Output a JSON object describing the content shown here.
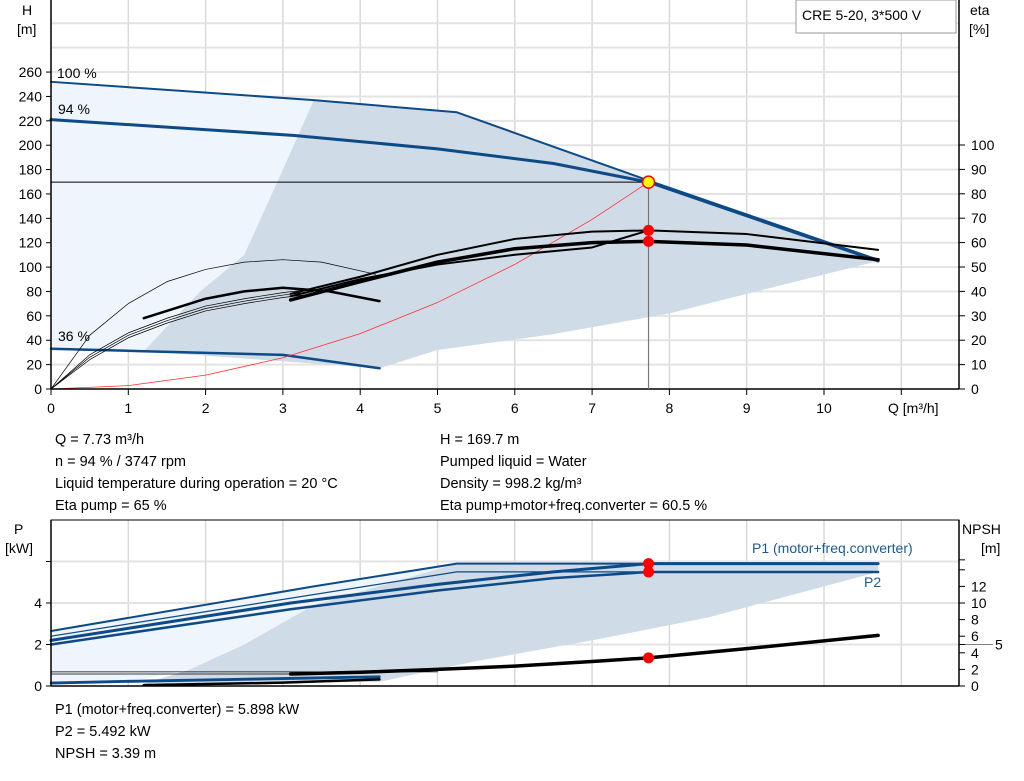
{
  "chart_data": [
    {
      "type": "line",
      "title": "CRE 5-20, 3*500 V",
      "xlabel": "Q [m³/h]",
      "ylabel_left": [
        "H",
        "[m]"
      ],
      "ylabel_right": [
        "eta",
        "[%]"
      ],
      "xlim": [
        0,
        11.7
      ],
      "ylim_left": [
        0,
        300
      ],
      "ylim_right": [
        0,
        100
      ],
      "x_ticks": [
        "0",
        "1",
        "2",
        "3",
        "4",
        "5",
        "6",
        "7",
        "8",
        "9",
        "10"
      ],
      "y_ticks_left": [
        "0",
        "20",
        "40",
        "60",
        "80",
        "100",
        "120",
        "140",
        "160",
        "180",
        "200",
        "220",
        "240",
        "260"
      ],
      "y_ticks_right": [
        "0",
        "10",
        "20",
        "30",
        "40",
        "50",
        "60",
        "70",
        "80",
        "90",
        "100"
      ],
      "grid": true,
      "curve_labels": [
        "100 %",
        "94 %",
        "36 %"
      ],
      "regions": [
        {
          "name": "outer-range",
          "color": "#eef5fc",
          "axis": "left",
          "points": [
            [
              0,
              252
            ],
            [
              3.4,
              237
            ],
            [
              3.0,
              180
            ],
            [
              2.5,
              110
            ],
            [
              1.93,
              80
            ],
            [
              1.25,
              33
            ],
            [
              1.2,
              31
            ],
            [
              0,
              33
            ]
          ]
        },
        {
          "name": "preferred-range",
          "color": "#cfdbe6",
          "axis": "left",
          "points": [
            [
              3.4,
              237
            ],
            [
              5.25,
              227
            ],
            [
              10.7,
              105
            ],
            [
              9.5,
              86
            ],
            [
              8,
              62
            ],
            [
              6.5,
              45
            ],
            [
              5,
              32
            ],
            [
              4.25,
              17
            ],
            [
              1.2,
              31
            ],
            [
              1.93,
              80
            ],
            [
              2.5,
              110
            ],
            [
              3.0,
              180
            ]
          ]
        }
      ],
      "series": [
        {
          "id": "h-100",
          "axis": "left",
          "color": "#0d4a86",
          "width": 2,
          "points": [
            [
              0,
              252
            ],
            [
              3.4,
              237
            ],
            [
              5.25,
              227
            ],
            [
              7.73,
              171
            ],
            [
              10.7,
              106
            ]
          ]
        },
        {
          "id": "h-94",
          "axis": "left",
          "color": "#0d4a86",
          "width": 3,
          "points": [
            [
              0,
              221
            ],
            [
              3.15,
              208
            ],
            [
              5,
              197
            ],
            [
              6.5,
              185
            ],
            [
              7.73,
              169.7
            ],
            [
              10.7,
              105
            ]
          ]
        },
        {
          "id": "h-36",
          "axis": "left",
          "color": "#0d4a86",
          "width": 2.5,
          "points": [
            [
              0,
              33
            ],
            [
              1.2,
              31
            ],
            [
              3,
              28
            ],
            [
              4.25,
              17
            ]
          ]
        },
        {
          "id": "system-curve",
          "axis": "left",
          "color": "#ff3030",
          "width": 0.8,
          "points": [
            [
              0,
              0
            ],
            [
              1,
              2.8
            ],
            [
              2,
              11.4
            ],
            [
              3,
              25.6
            ],
            [
              4,
              45.4
            ],
            [
              5,
              71
            ],
            [
              6,
              102.2
            ],
            [
              7,
              139.1
            ],
            [
              7.73,
              169.7
            ]
          ]
        },
        {
          "id": "eta-pump-100",
          "axis": "right",
          "color": "#000",
          "width": 0.7,
          "points": [
            [
              0,
              0
            ],
            [
              0.5,
              22
            ],
            [
              1,
              35
            ],
            [
              1.5,
              44
            ],
            [
              2,
              49
            ],
            [
              2.5,
              52
            ],
            [
              3,
              53
            ],
            [
              3.5,
              52
            ],
            [
              4.2,
              47
            ]
          ]
        },
        {
          "id": "eta-pump-36",
          "axis": "right",
          "color": "#000",
          "width": 2.5,
          "points": [
            [
              1.2,
              29
            ],
            [
              2,
              37
            ],
            [
              2.5,
              40
            ],
            [
              3,
              41.5
            ],
            [
              3.6,
              40
            ],
            [
              4.25,
              36
            ]
          ]
        },
        {
          "id": "eta-thin-1",
          "axis": "right",
          "color": "#000",
          "width": 0.7,
          "points": [
            [
              0,
              0
            ],
            [
              0.5,
              14
            ],
            [
              1,
              23
            ],
            [
              1.5,
              29
            ],
            [
              2,
              34
            ],
            [
              2.5,
              37
            ],
            [
              3,
              39.5
            ],
            [
              3.4,
              41
            ]
          ]
        },
        {
          "id": "eta-thin-2",
          "axis": "right",
          "color": "#000",
          "width": 0.7,
          "points": [
            [
              0,
              0
            ],
            [
              0.5,
              13
            ],
            [
              1,
              22
            ],
            [
              1.5,
              28
            ],
            [
              2,
              33
            ],
            [
              2.5,
              36
            ],
            [
              3,
              38.5
            ],
            [
              3.4,
              40
            ]
          ]
        },
        {
          "id": "eta-thin-3",
          "axis": "right",
          "color": "#000",
          "width": 0.7,
          "points": [
            [
              0,
              0
            ],
            [
              0.5,
              12
            ],
            [
              1,
              21
            ],
            [
              1.5,
              27
            ],
            [
              2,
              32
            ],
            [
              2.5,
              35
            ],
            [
              3,
              37.5
            ],
            [
              3.4,
              39
            ]
          ]
        },
        {
          "id": "eta-pump",
          "axis": "right",
          "color": "#000",
          "width": 2,
          "points": [
            [
              3.1,
              38
            ],
            [
              4,
              45
            ],
            [
              5,
              51
            ],
            [
              6,
              55
            ],
            [
              7,
              58
            ],
            [
              7.73,
              65
            ],
            [
              7.73,
              65
            ]
          ]
        },
        {
          "id": "eta-pump-94",
          "axis": "right",
          "color": "#000",
          "width": 2,
          "points": [
            [
              3.1,
              39
            ],
            [
              4,
              46
            ],
            [
              5,
              55
            ],
            [
              6,
              61.5
            ],
            [
              7,
              64.5
            ],
            [
              7.73,
              65
            ],
            [
              9,
              63.5
            ],
            [
              10.7,
              57
            ]
          ]
        },
        {
          "id": "eta-total-94",
          "axis": "right",
          "color": "#000",
          "width": 3.5,
          "points": [
            [
              3.1,
              36.5
            ],
            [
              4,
              44
            ],
            [
              5,
              52
            ],
            [
              6,
              57.5
            ],
            [
              7,
              60
            ],
            [
              7.73,
              60.5
            ],
            [
              9,
              59
            ],
            [
              10.7,
              53
            ]
          ]
        }
      ],
      "operating_point": {
        "Q": 7.73,
        "H": 169.7,
        "eta_pump": 65,
        "eta_total": 60.5
      }
    },
    {
      "type": "line",
      "ylabel_left": [
        "P",
        "[kW]"
      ],
      "ylabel_right": [
        "NPSH",
        "[m]"
      ],
      "xlim": [
        0,
        11.7
      ],
      "ylim_left": [
        0,
        8
      ],
      "ylim_right": [
        0,
        20
      ],
      "y_ticks_left": [
        "0",
        "2",
        "4"
      ],
      "y_ticks_right": [
        "0",
        "2",
        "4",
        "5",
        "6",
        "8",
        "10",
        "12"
      ],
      "grid": true,
      "curve_labels": [
        "P1 (motor+freq.converter)",
        "P2"
      ],
      "regions": [
        {
          "name": "outer-range",
          "color": "#eef5fc",
          "axis": "left",
          "points": [
            [
              0,
              2.65
            ],
            [
              3.4,
              4.8
            ],
            [
              5.25,
              5.9
            ],
            [
              3.4,
              3.9
            ],
            [
              2.5,
              2.0
            ],
            [
              1.8,
              0.8
            ],
            [
              1.2,
              0.35
            ],
            [
              0,
              0.1
            ]
          ]
        },
        {
          "name": "preferred-range",
          "color": "#cfdbe6",
          "axis": "left",
          "points": [
            [
              5.25,
              5.9
            ],
            [
              10.7,
              5.9
            ],
            [
              10.7,
              5.5
            ],
            [
              9.5,
              4.3
            ],
            [
              8.5,
              3.3
            ],
            [
              7,
              2.2
            ],
            [
              5.5,
              1.2
            ],
            [
              4.25,
              0.2
            ],
            [
              1.2,
              0.1
            ],
            [
              1.8,
              0.8
            ],
            [
              2.5,
              2.0
            ],
            [
              3.4,
              3.9
            ]
          ]
        }
      ],
      "series": [
        {
          "id": "p1-100",
          "axis": "left",
          "color": "#0d4a86",
          "width": 2,
          "points": [
            [
              0,
              2.65
            ],
            [
              3.4,
              4.8
            ],
            [
              5.25,
              5.9
            ],
            [
              10.7,
              5.9
            ]
          ]
        },
        {
          "id": "p2-100",
          "axis": "left",
          "color": "#0d4a86",
          "width": 1.2,
          "points": [
            [
              0,
              2.4
            ],
            [
              5.25,
              5.5
            ],
            [
              10.7,
              5.5
            ]
          ]
        },
        {
          "id": "p1-94",
          "axis": "left",
          "color": "#0d4a86",
          "width": 3,
          "points": [
            [
              0,
              2.2
            ],
            [
              3.1,
              4.0
            ],
            [
              5,
              4.9
            ],
            [
              6.5,
              5.5
            ],
            [
              7.73,
              5.898
            ],
            [
              10.7,
              5.898
            ]
          ]
        },
        {
          "id": "p2-94",
          "axis": "left",
          "color": "#0d4a86",
          "width": 2.5,
          "points": [
            [
              0,
              2.0
            ],
            [
              3.1,
              3.7
            ],
            [
              5,
              4.6
            ],
            [
              6.5,
              5.2
            ],
            [
              7.73,
              5.492
            ],
            [
              10.7,
              5.492
            ]
          ]
        },
        {
          "id": "p1-36",
          "axis": "left",
          "color": "#0d4a86",
          "width": 2.5,
          "points": [
            [
              0,
              0.15
            ],
            [
              1.2,
              0.25
            ],
            [
              4.25,
              0.45
            ]
          ]
        },
        {
          "id": "p2-36",
          "axis": "left",
          "color": "#0d4a86",
          "width": 1.2,
          "points": [
            [
              0,
              0.1
            ],
            [
              1.2,
              0.2
            ],
            [
              4.25,
              0.4
            ]
          ]
        },
        {
          "id": "npsh-36",
          "axis": "right",
          "color": "#000",
          "width": 2.5,
          "points": [
            [
              1.2,
              0.1
            ],
            [
              3,
              0.4
            ],
            [
              4.25,
              0.8
            ]
          ]
        },
        {
          "id": "npsh-ref-1",
          "axis": "right",
          "color": "#000",
          "width": 0.8,
          "points": [
            [
              0,
              1.7
            ],
            [
              5,
              1.7
            ]
          ]
        },
        {
          "id": "npsh-ref-2",
          "axis": "right",
          "color": "#000",
          "width": 0.8,
          "points": [
            [
              0,
              1.45
            ],
            [
              3.1,
              1.45
            ]
          ]
        },
        {
          "id": "npsh-94",
          "axis": "right",
          "color": "#000",
          "width": 3.5,
          "points": [
            [
              3.1,
              1.45
            ],
            [
              4,
              1.65
            ],
            [
              5,
              2.0
            ],
            [
              6,
              2.4
            ],
            [
              7,
              2.95
            ],
            [
              7.73,
              3.39
            ],
            [
              9,
              4.5
            ],
            [
              10.7,
              6.1
            ]
          ]
        }
      ],
      "operating_point": {
        "Q": 7.73,
        "P1": 5.898,
        "P2": 5.492,
        "NPSH": 3.39
      }
    }
  ],
  "info_top": {
    "left": [
      "Q = 7.73 m³/h",
      "n = 94 % / 3747 rpm",
      "Liquid temperature during operation = 20 °C",
      "Eta pump = 65 %"
    ],
    "right": [
      "H = 169.7 m",
      "Pumped liquid = Water",
      "Density = 998.2 kg/m³",
      "Eta pump+motor+freq.converter = 60.5 %"
    ]
  },
  "info_bottom": [
    "P1 (motor+freq.converter) = 5.898 kW",
    "P2 = 5.492 kW",
    "NPSH = 3.39 m"
  ],
  "colors": {
    "curve_blue": "#0d4a86",
    "marker_red": "#ff0000",
    "operating_point": "#ffff00",
    "grid": "#d9d9d9"
  }
}
